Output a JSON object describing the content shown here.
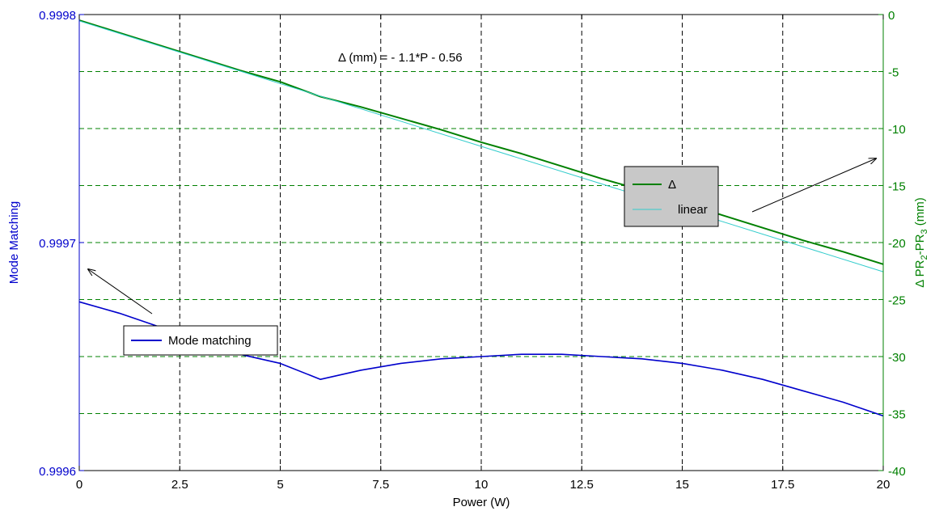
{
  "chart_data": {
    "type": "line",
    "xlabel": "Power (W)",
    "ylabel_left": "Mode Matching",
    "ylabel_right_delta": "Δ",
    "ylabel_right_main": "PR",
    "ylabel_right_sub1": "2",
    "ylabel_right_dash": "-PR",
    "ylabel_right_sub2": "3",
    "ylabel_right_unit": " (mm)",
    "xlim": [
      0,
      20
    ],
    "ylim_left": [
      0.9996,
      0.9998
    ],
    "ylim_right": [
      -40,
      0
    ],
    "x_ticks": [
      "0",
      "2.5",
      "5",
      "7.5",
      "10",
      "12.5",
      "15",
      "17.5",
      "20"
    ],
    "y_left_ticks": [
      "0.9996",
      "0.9997",
      "0.9998"
    ],
    "y_right_ticks": [
      "0",
      "-5",
      "-10",
      "-15",
      "-20",
      "-25",
      "-30",
      "-35",
      "-40"
    ],
    "grid": true,
    "annotation": "Δ (mm)  = - 1.1*P - 0.56",
    "series": [
      {
        "name": "Mode matching",
        "axis": "left",
        "color": "#0000cc",
        "x": [
          0,
          1,
          2,
          3,
          4,
          5,
          6,
          7,
          8,
          9,
          10,
          11,
          12,
          13,
          14,
          15,
          16,
          17,
          18,
          19,
          20
        ],
        "y": [
          0.999674,
          0.999669,
          0.999663,
          0.999657,
          0.999651,
          0.999647,
          0.99964,
          0.999644,
          0.999647,
          0.999649,
          0.99965,
          0.999651,
          0.999651,
          0.99965,
          0.999649,
          0.999647,
          0.999644,
          0.99964,
          0.999635,
          0.99963,
          0.999624
        ]
      },
      {
        "name": "Δ",
        "axis": "right",
        "color": "#008000",
        "x": [
          0,
          1,
          2,
          3,
          4,
          5,
          6,
          7,
          8,
          9,
          10,
          11,
          12,
          13,
          14,
          15,
          16,
          17,
          18,
          19,
          20
        ],
        "y": [
          -0.5,
          -1.6,
          -2.7,
          -3.8,
          -4.9,
          -5.9,
          -7.2,
          -8.1,
          -9.1,
          -10.1,
          -11.2,
          -12.2,
          -13.3,
          -14.4,
          -15.4,
          -16.5,
          -17.6,
          -18.7,
          -19.8,
          -20.8,
          -21.9
        ]
      },
      {
        "name": "linear",
        "axis": "right",
        "color": "#33cccc",
        "x": [
          0,
          20
        ],
        "y": [
          -0.56,
          -22.56
        ]
      }
    ],
    "legends": [
      {
        "entries": [
          "Δ",
          "linear"
        ],
        "position": "right-middle"
      },
      {
        "entries": [
          "Mode matching"
        ],
        "position": "left-lower"
      }
    ]
  }
}
